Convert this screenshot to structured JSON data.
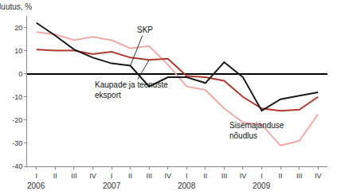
{
  "chart_data": {
    "type": "line",
    "y_label": "Muutus, %",
    "categories": [
      "I",
      "II",
      "III",
      "IV",
      "I",
      "II",
      "III",
      "IV",
      "I",
      "II",
      "III",
      "IV",
      "I",
      "II",
      "III",
      "IV"
    ],
    "years": [
      "2006",
      "2007",
      "2008",
      "2009"
    ],
    "series": [
      {
        "name": "Sisemajanduse nõudlus",
        "color": "#f2a9a9",
        "values": [
          18,
          17,
          14.5,
          16,
          14.5,
          11,
          12,
          4,
          -5.5,
          -7,
          -15,
          -21,
          -22,
          -31,
          -29,
          -17.5
        ]
      },
      {
        "name": "Kaupade ja teenuste eksport",
        "color": "#b3382e",
        "values": [
          10.5,
          10,
          10,
          8.5,
          9.5,
          7,
          6,
          6.5,
          -1,
          -1.5,
          -3,
          -10,
          -15,
          -16,
          -15.5,
          -10
        ]
      },
      {
        "name": "SKP",
        "color": "#1a1a1a",
        "values": [
          22,
          16.5,
          10.5,
          7,
          4.5,
          3.5,
          -5.5,
          -1.5,
          -1.5,
          -4,
          5,
          -1.5,
          -16,
          -11,
          -9.5,
          -8
        ]
      }
    ],
    "ylim": [
      -40,
      25
    ],
    "yticks": [
      -40,
      -30,
      -20,
      -10,
      0,
      10,
      20
    ],
    "grid": false
  }
}
